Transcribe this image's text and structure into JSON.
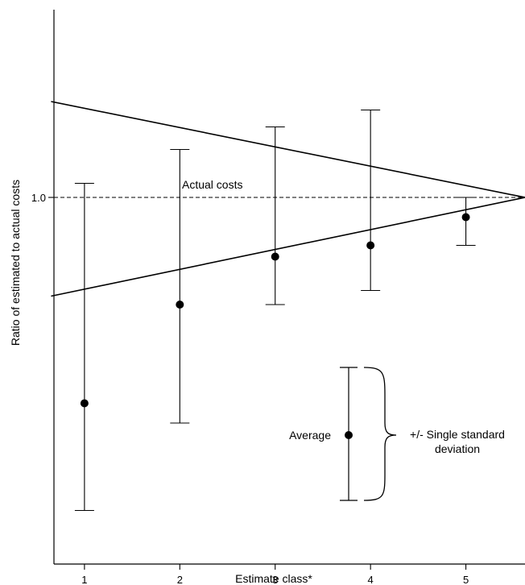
{
  "chart_data": {
    "type": "scatter",
    "xlabel": "Estimate class*",
    "ylabel": "Ratio of estimated to actual costs",
    "x_ticks": [
      "1",
      "2",
      "3",
      "4",
      "5"
    ],
    "y_ticks": [
      "1.0"
    ],
    "xlim": [
      0.68,
      5.62
    ],
    "ylim": [
      0.0,
      1.0
    ],
    "grid": false,
    "points": [
      {
        "x": 1,
        "mean": 0.285,
        "low": 0.095,
        "high": 0.675
      },
      {
        "x": 2,
        "mean": 0.46,
        "low": 0.25,
        "high": 0.735
      },
      {
        "x": 3,
        "mean": 0.545,
        "low": 0.46,
        "high": 0.775
      },
      {
        "x": 4,
        "mean": 0.565,
        "low": 0.485,
        "high": 0.805
      },
      {
        "x": 5,
        "mean": 0.615,
        "low": 0.565,
        "high": 0.65
      }
    ],
    "reference_line": {
      "y": 0.65,
      "label": "Actual costs",
      "style": "dashed"
    },
    "envelope": {
      "apex": {
        "x": 5.62,
        "y": 0.65
      },
      "upper_start": {
        "x": 0.65,
        "y": 0.82
      },
      "lower_start": {
        "x": 0.65,
        "y": 0.475
      }
    },
    "legend": {
      "point_label": "Average",
      "bar_label_line1": "+/- Single standard",
      "bar_label_line2": "deviation",
      "placement": "bottom-right"
    }
  }
}
